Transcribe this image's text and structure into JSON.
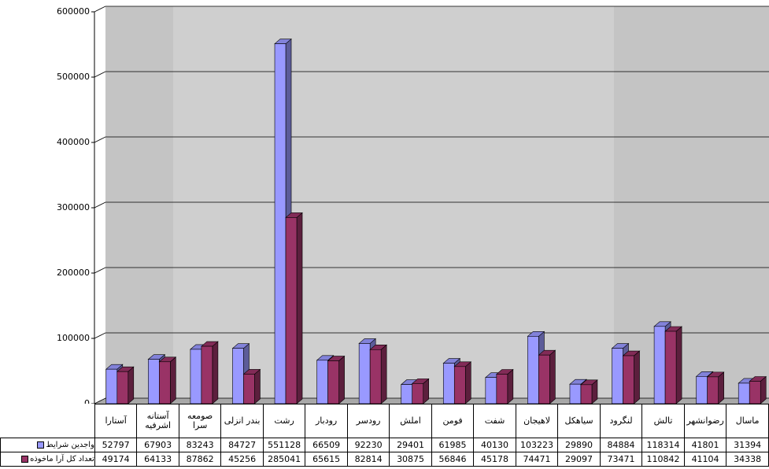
{
  "chart_data": {
    "type": "bar",
    "categories": [
      "آستارا",
      "آستانه اشرفیه",
      "صومعه سرا",
      "بندر انزلی",
      "رشت",
      "رودبار",
      "رودسر",
      "املش",
      "فومن",
      "شفت",
      "لاهیجان",
      "سیاهکل",
      "لنگرود",
      "تالش",
      "رضوانشهر",
      "ماسال"
    ],
    "series": [
      {
        "name": "واجدین شرایط",
        "color": "#9999ff",
        "values": [
          52797,
          67903,
          83243,
          84727,
          551128,
          66509,
          92230,
          29401,
          61985,
          40130,
          103223,
          29890,
          84884,
          118314,
          41801,
          31394
        ]
      },
      {
        "name": "تعداد کل آرا ماخوذه",
        "color": "#993366",
        "values": [
          49174,
          64133,
          87862,
          45256,
          285041,
          65615,
          82814,
          30875,
          56846,
          45178,
          74471,
          29097,
          73471,
          110842,
          41104,
          34338
        ]
      }
    ],
    "ylim": [
      0,
      600000
    ],
    "yticks": [
      0,
      100000,
      200000,
      300000,
      400000,
      500000,
      600000
    ],
    "grid": true
  }
}
